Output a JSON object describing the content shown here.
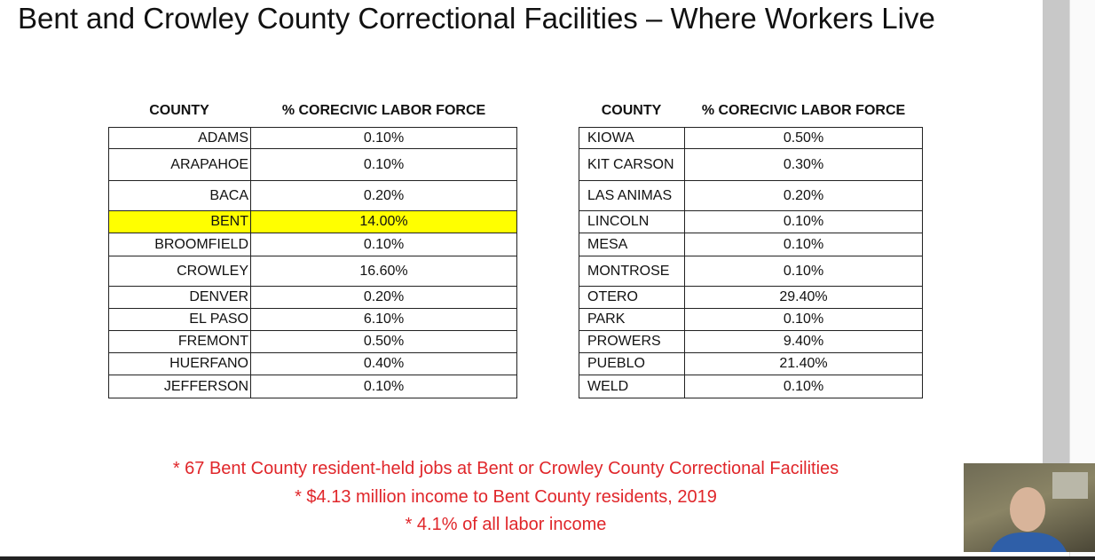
{
  "title": "Bent and Crowley County Correctional Facilities – Where Workers Live",
  "tables": [
    {
      "header": [
        "COUNTY",
        "% CORECIVIC LABOR FORCE"
      ],
      "rows": [
        [
          "ADAMS",
          "0.10%"
        ],
        [
          "ARAPAHOE",
          "0.10%"
        ],
        [
          "BACA",
          "0.20%"
        ],
        [
          "BENT",
          "14.00%"
        ],
        [
          "BROOMFIELD",
          "0.10%"
        ],
        [
          "CROWLEY",
          "16.60%"
        ],
        [
          "DENVER",
          "0.20%"
        ],
        [
          "EL PASO",
          "6.10%"
        ],
        [
          "FREMONT",
          "0.50%"
        ],
        [
          "HUERFANO",
          "0.40%"
        ],
        [
          "JEFFERSON",
          "0.10%"
        ]
      ],
      "highlight": {
        "row": 3,
        "color": "#ffff00"
      }
    },
    {
      "header": [
        "COUNTY",
        "% CORECIVIC LABOR FORCE"
      ],
      "rows": [
        [
          "KIOWA",
          "0.50%"
        ],
        [
          "KIT CARSON",
          "0.30%"
        ],
        [
          "LAS ANIMAS",
          "0.20%"
        ],
        [
          "LINCOLN",
          "0.10%"
        ],
        [
          "MESA",
          "0.10%"
        ],
        [
          "MONTROSE",
          "0.10%"
        ],
        [
          "OTERO",
          "29.40%"
        ],
        [
          "PARK",
          "0.10%"
        ],
        [
          "PROWERS",
          "9.40%"
        ],
        [
          "PUEBLO",
          "21.40%"
        ],
        [
          "WELD",
          "0.10%"
        ]
      ]
    }
  ],
  "notes": [
    "* 67 Bent County resident-held jobs at Bent or Crowley County Correctional Facilities",
    "* $4.13 million income to Bent County residents, 2019",
    "* 4.1% of all labor income"
  ]
}
